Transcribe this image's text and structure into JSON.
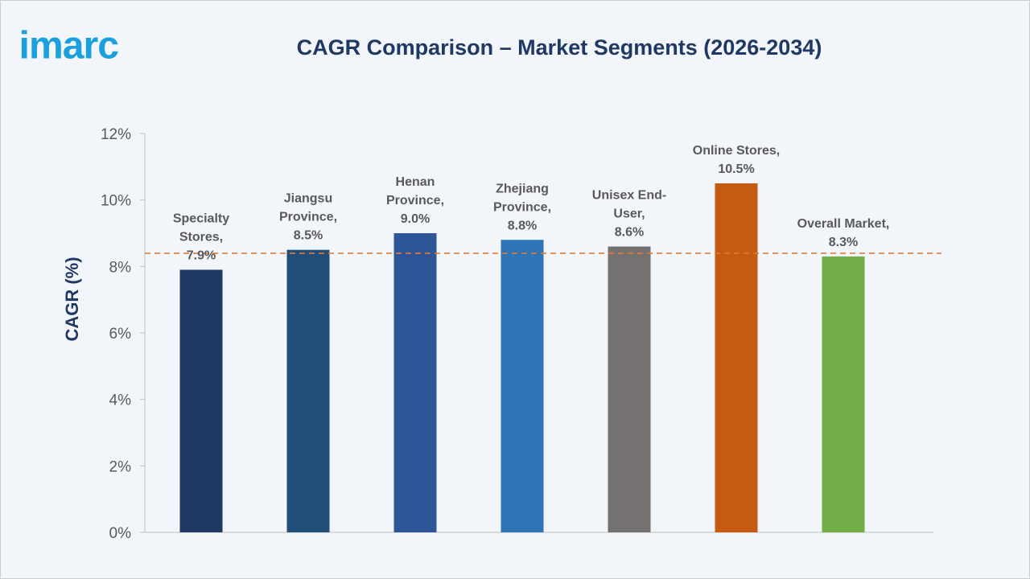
{
  "brand": {
    "logo_text": "imarc",
    "logo_color": "#1aa0dc"
  },
  "chart_data": {
    "type": "bar",
    "title": "CAGR Comparison – Market Segments (2026-2034)",
    "xlabel": "",
    "ylabel": "CAGR (%)",
    "ylim": [
      0,
      12
    ],
    "y_ticks": [
      "0%",
      "2%",
      "4%",
      "6%",
      "8%",
      "10%",
      "12%"
    ],
    "y_tick_values": [
      0,
      2,
      4,
      6,
      8,
      10,
      12
    ],
    "grid": false,
    "legend": "none",
    "reference_line": {
      "value": 8.3,
      "style": "dashed",
      "color": "#e07b39"
    },
    "categories": [
      "Specialty Stores",
      "Jiangsu Province",
      "Henan Province",
      "Zhejiang Province",
      "Unisex End-User",
      "Online Stores",
      "Overall Market"
    ],
    "values": [
      7.9,
      8.5,
      9.0,
      8.8,
      8.6,
      10.5,
      8.3
    ],
    "data_labels": [
      [
        "Specialty",
        "Stores,",
        "7.9%"
      ],
      [
        "Jiangsu",
        "Province,",
        "8.5%"
      ],
      [
        "Henan",
        "Province,",
        "9.0%"
      ],
      [
        "Zhejiang",
        "Province,",
        "8.8%"
      ],
      [
        "Unisex End-",
        "User,",
        "8.6%"
      ],
      [
        "Online Stores,",
        "10.5%"
      ],
      [
        "Overall Market,",
        "8.3%"
      ]
    ],
    "colors": [
      "#1f3864",
      "#1f4e79",
      "#2e5597",
      "#2e75b6",
      "#767171",
      "#c55a11",
      "#70ad47"
    ]
  }
}
